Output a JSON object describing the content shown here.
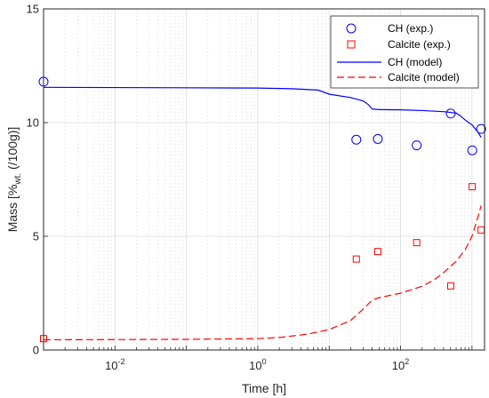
{
  "chart_data": {
    "type": "scatter",
    "title": "",
    "xlabel": "Time [h]",
    "ylabel": {
      "main": "Mass [%",
      "sub": "wt.",
      "tail": " (/100g)]"
    },
    "xscale": "log",
    "xlim": [
      0.001,
      1500
    ],
    "ylim": [
      0,
      15
    ],
    "grid": true,
    "legend_position": "top-right",
    "x_ticks": [
      {
        "value": 0.01,
        "base": "10",
        "exp": "-2"
      },
      {
        "value": 1,
        "base": "10",
        "exp": "0"
      },
      {
        "value": 100,
        "base": "10",
        "exp": "2"
      }
    ],
    "y_ticks": [
      {
        "value": 0,
        "label": "0"
      },
      {
        "value": 5,
        "label": "5"
      },
      {
        "value": 10,
        "label": "10"
      },
      {
        "value": 15,
        "label": "15"
      }
    ],
    "series": [
      {
        "name": "CH (exp.)",
        "kind": "marker",
        "marker": "circle",
        "color": "#0000FF",
        "x": [
          0.001,
          24,
          48,
          168,
          504,
          1008,
          1344
        ],
        "y": [
          11.8,
          9.25,
          9.28,
          9.0,
          10.4,
          8.78,
          9.72
        ]
      },
      {
        "name": "Calcite (exp.)",
        "kind": "marker",
        "marker": "square",
        "color": "#FF0000",
        "x": [
          0.001,
          24,
          48,
          168,
          504,
          1008,
          1344
        ],
        "y": [
          0.5,
          4.0,
          4.33,
          4.72,
          2.82,
          7.18,
          5.28
        ]
      },
      {
        "name": "CH (model)",
        "kind": "line",
        "dash": "solid",
        "color": "#0000FF",
        "x": [
          0.001,
          0.01,
          0.1,
          1,
          3,
          7,
          10,
          20,
          30,
          35,
          40,
          50,
          100,
          200,
          400,
          600,
          700,
          800,
          900,
          1000,
          1200,
          1344
        ],
        "y": [
          11.55,
          11.54,
          11.53,
          11.52,
          11.49,
          11.43,
          11.25,
          11.1,
          10.95,
          10.8,
          10.6,
          10.57,
          10.56,
          10.53,
          10.48,
          10.42,
          10.28,
          10.12,
          10.0,
          9.9,
          9.6,
          9.35
        ]
      },
      {
        "name": "Calcite (model)",
        "kind": "line",
        "dash": "dashed",
        "color": "#FF0000",
        "x": [
          0.001,
          0.01,
          0.1,
          1,
          2,
          5,
          10,
          20,
          30,
          40,
          50,
          100,
          200,
          300,
          400,
          600,
          800,
          1000,
          1200,
          1344
        ],
        "y": [
          0.45,
          0.46,
          0.47,
          0.5,
          0.55,
          0.7,
          0.9,
          1.3,
          1.8,
          2.2,
          2.3,
          2.5,
          2.8,
          3.1,
          3.4,
          3.9,
          4.4,
          5.0,
          5.8,
          6.35
        ]
      }
    ]
  }
}
